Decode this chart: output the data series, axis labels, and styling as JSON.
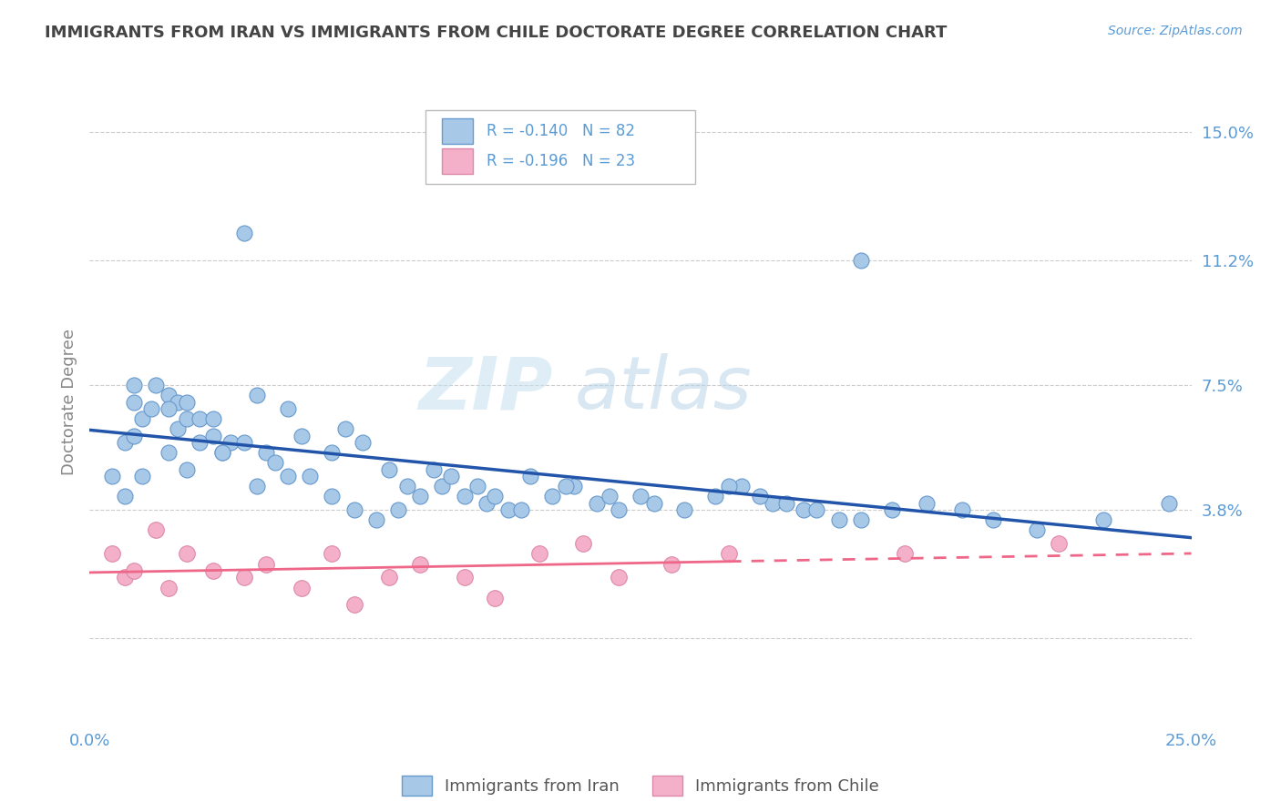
{
  "title": "IMMIGRANTS FROM IRAN VS IMMIGRANTS FROM CHILE DOCTORATE DEGREE CORRELATION CHART",
  "source": "Source: ZipAtlas.com",
  "ylabel": "Doctorate Degree",
  "xlim": [
    0.0,
    0.25
  ],
  "ylim": [
    -0.025,
    0.165
  ],
  "ytick_positions": [
    0.0,
    0.038,
    0.075,
    0.112,
    0.15
  ],
  "ytick_labels": [
    "",
    "3.8%",
    "7.5%",
    "11.2%",
    "15.0%"
  ],
  "xtick_positions": [
    0.0,
    0.05,
    0.1,
    0.15,
    0.2,
    0.25
  ],
  "xtick_labels": [
    "0.0%",
    "",
    "",
    "",
    "",
    "25.0%"
  ],
  "iran_dot_color": "#a8c8e8",
  "iran_dot_edge": "#6699cc",
  "chile_dot_color": "#f4b0c8",
  "chile_dot_edge": "#dd88aa",
  "iran_line_color": "#2255aa",
  "chile_line_color": "#ee6688",
  "grid_color": "#cccccc",
  "title_color": "#444444",
  "tick_color": "#5b9bd5",
  "iran_R": "-0.140",
  "iran_N": "82",
  "chile_R": "-0.196",
  "chile_N": "23",
  "iran_x": [
    0.008,
    0.012,
    0.005,
    0.01,
    0.01,
    0.018,
    0.022,
    0.01,
    0.014,
    0.02,
    0.025,
    0.018,
    0.012,
    0.008,
    0.03,
    0.035,
    0.04,
    0.045,
    0.022,
    0.028,
    0.032,
    0.038,
    0.015,
    0.02,
    0.025,
    0.03,
    0.042,
    0.05,
    0.055,
    0.06,
    0.065,
    0.048,
    0.035,
    0.028,
    0.022,
    0.018,
    0.07,
    0.075,
    0.08,
    0.055,
    0.062,
    0.068,
    0.072,
    0.058,
    0.045,
    0.038,
    0.085,
    0.09,
    0.095,
    0.078,
    0.082,
    0.088,
    0.092,
    0.098,
    0.105,
    0.11,
    0.115,
    0.12,
    0.125,
    0.1,
    0.108,
    0.118,
    0.128,
    0.135,
    0.142,
    0.148,
    0.155,
    0.162,
    0.17,
    0.145,
    0.152,
    0.158,
    0.165,
    0.175,
    0.182,
    0.19,
    0.198,
    0.205,
    0.215,
    0.175,
    0.23,
    0.245
  ],
  "iran_y": [
    0.058,
    0.065,
    0.048,
    0.07,
    0.06,
    0.055,
    0.05,
    0.075,
    0.068,
    0.062,
    0.058,
    0.072,
    0.048,
    0.042,
    0.055,
    0.12,
    0.055,
    0.048,
    0.065,
    0.06,
    0.058,
    0.045,
    0.075,
    0.07,
    0.065,
    0.055,
    0.052,
    0.048,
    0.042,
    0.038,
    0.035,
    0.06,
    0.058,
    0.065,
    0.07,
    0.068,
    0.038,
    0.042,
    0.045,
    0.055,
    0.058,
    0.05,
    0.045,
    0.062,
    0.068,
    0.072,
    0.042,
    0.04,
    0.038,
    0.05,
    0.048,
    0.045,
    0.042,
    0.038,
    0.042,
    0.045,
    0.04,
    0.038,
    0.042,
    0.048,
    0.045,
    0.042,
    0.04,
    0.038,
    0.042,
    0.045,
    0.04,
    0.038,
    0.035,
    0.045,
    0.042,
    0.04,
    0.038,
    0.035,
    0.038,
    0.04,
    0.038,
    0.035,
    0.032,
    0.112,
    0.035,
    0.04
  ],
  "chile_x": [
    0.005,
    0.008,
    0.01,
    0.015,
    0.018,
    0.022,
    0.028,
    0.035,
    0.04,
    0.048,
    0.055,
    0.06,
    0.068,
    0.075,
    0.085,
    0.092,
    0.102,
    0.112,
    0.12,
    0.132,
    0.145,
    0.185,
    0.22
  ],
  "chile_y": [
    0.025,
    0.018,
    0.02,
    0.032,
    0.015,
    0.025,
    0.02,
    0.018,
    0.022,
    0.015,
    0.025,
    0.01,
    0.018,
    0.022,
    0.018,
    0.012,
    0.025,
    0.028,
    0.018,
    0.022,
    0.025,
    0.025,
    0.028
  ]
}
